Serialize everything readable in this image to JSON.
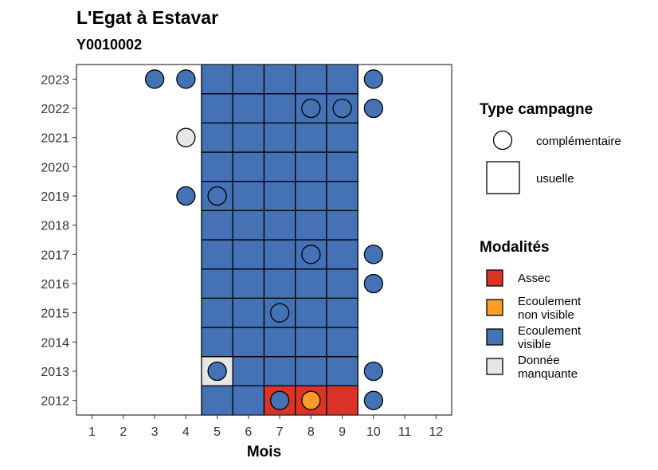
{
  "chart_data": {
    "type": "heatmap",
    "title": "L'Egat à Estavar",
    "subtitle": "Y0010002",
    "xlabel": "Mois",
    "ylabel": "",
    "x_ticks": [
      1,
      2,
      3,
      4,
      5,
      6,
      7,
      8,
      9,
      10,
      11,
      12
    ],
    "y_ticks": [
      2012,
      2013,
      2014,
      2015,
      2016,
      2017,
      2018,
      2019,
      2020,
      2021,
      2022,
      2023
    ],
    "xlim": [
      0.5,
      12.5
    ],
    "ylim": [
      2011.5,
      2023.5
    ],
    "grid": false,
    "legend_campaign": {
      "title": "Type campagne",
      "items": [
        {
          "key": "complementaire",
          "label": "complémentaire",
          "shape": "circle"
        },
        {
          "key": "usuelle",
          "label": "usuelle",
          "shape": "square"
        }
      ]
    },
    "legend_modalites": {
      "title": "Modalités",
      "items": [
        {
          "key": "assec",
          "label_lines": [
            "Assec"
          ],
          "color": "#db3328"
        },
        {
          "key": "nonvisible",
          "label_lines": [
            "Ecoulement",
            "non visible"
          ],
          "color": "#fd9d27"
        },
        {
          "key": "visible",
          "label_lines": [
            "Ecoulement",
            "visible"
          ],
          "color": "#4472b5"
        },
        {
          "key": "manquante",
          "label_lines": [
            "Donnée",
            "manquante"
          ],
          "color": "#e6e6e6"
        }
      ]
    },
    "usuelle": [
      {
        "year": 2012,
        "month": 5,
        "mod": "visible"
      },
      {
        "year": 2012,
        "month": 6,
        "mod": "visible"
      },
      {
        "year": 2012,
        "month": 7,
        "mod": "assec"
      },
      {
        "year": 2012,
        "month": 8,
        "mod": "assec"
      },
      {
        "year": 2012,
        "month": 9,
        "mod": "assec"
      },
      {
        "year": 2013,
        "month": 5,
        "mod": "manquante"
      },
      {
        "year": 2013,
        "month": 6,
        "mod": "visible"
      },
      {
        "year": 2013,
        "month": 7,
        "mod": "visible"
      },
      {
        "year": 2013,
        "month": 8,
        "mod": "visible"
      },
      {
        "year": 2013,
        "month": 9,
        "mod": "visible"
      },
      {
        "year": 2014,
        "month": 5,
        "mod": "visible"
      },
      {
        "year": 2014,
        "month": 6,
        "mod": "visible"
      },
      {
        "year": 2014,
        "month": 7,
        "mod": "visible"
      },
      {
        "year": 2014,
        "month": 8,
        "mod": "visible"
      },
      {
        "year": 2014,
        "month": 9,
        "mod": "visible"
      },
      {
        "year": 2015,
        "month": 5,
        "mod": "visible"
      },
      {
        "year": 2015,
        "month": 6,
        "mod": "visible"
      },
      {
        "year": 2015,
        "month": 7,
        "mod": "visible"
      },
      {
        "year": 2015,
        "month": 8,
        "mod": "visible"
      },
      {
        "year": 2015,
        "month": 9,
        "mod": "visible"
      },
      {
        "year": 2016,
        "month": 5,
        "mod": "visible"
      },
      {
        "year": 2016,
        "month": 6,
        "mod": "visible"
      },
      {
        "year": 2016,
        "month": 7,
        "mod": "visible"
      },
      {
        "year": 2016,
        "month": 8,
        "mod": "visible"
      },
      {
        "year": 2016,
        "month": 9,
        "mod": "visible"
      },
      {
        "year": 2017,
        "month": 5,
        "mod": "visible"
      },
      {
        "year": 2017,
        "month": 6,
        "mod": "visible"
      },
      {
        "year": 2017,
        "month": 7,
        "mod": "visible"
      },
      {
        "year": 2017,
        "month": 8,
        "mod": "visible"
      },
      {
        "year": 2017,
        "month": 9,
        "mod": "visible"
      },
      {
        "year": 2018,
        "month": 5,
        "mod": "visible"
      },
      {
        "year": 2018,
        "month": 6,
        "mod": "visible"
      },
      {
        "year": 2018,
        "month": 7,
        "mod": "visible"
      },
      {
        "year": 2018,
        "month": 8,
        "mod": "visible"
      },
      {
        "year": 2018,
        "month": 9,
        "mod": "visible"
      },
      {
        "year": 2019,
        "month": 5,
        "mod": "visible"
      },
      {
        "year": 2019,
        "month": 6,
        "mod": "visible"
      },
      {
        "year": 2019,
        "month": 7,
        "mod": "visible"
      },
      {
        "year": 2019,
        "month": 8,
        "mod": "visible"
      },
      {
        "year": 2019,
        "month": 9,
        "mod": "visible"
      },
      {
        "year": 2020,
        "month": 5,
        "mod": "visible"
      },
      {
        "year": 2020,
        "month": 6,
        "mod": "visible"
      },
      {
        "year": 2020,
        "month": 7,
        "mod": "visible"
      },
      {
        "year": 2020,
        "month": 8,
        "mod": "visible"
      },
      {
        "year": 2020,
        "month": 9,
        "mod": "visible"
      },
      {
        "year": 2021,
        "month": 5,
        "mod": "visible"
      },
      {
        "year": 2021,
        "month": 6,
        "mod": "visible"
      },
      {
        "year": 2021,
        "month": 7,
        "mod": "visible"
      },
      {
        "year": 2021,
        "month": 8,
        "mod": "visible"
      },
      {
        "year": 2021,
        "month": 9,
        "mod": "visible"
      },
      {
        "year": 2022,
        "month": 5,
        "mod": "visible"
      },
      {
        "year": 2022,
        "month": 6,
        "mod": "visible"
      },
      {
        "year": 2022,
        "month": 7,
        "mod": "visible"
      },
      {
        "year": 2022,
        "month": 8,
        "mod": "visible"
      },
      {
        "year": 2022,
        "month": 9,
        "mod": "visible"
      },
      {
        "year": 2023,
        "month": 5,
        "mod": "visible"
      },
      {
        "year": 2023,
        "month": 6,
        "mod": "visible"
      },
      {
        "year": 2023,
        "month": 7,
        "mod": "visible"
      },
      {
        "year": 2023,
        "month": 8,
        "mod": "visible"
      },
      {
        "year": 2023,
        "month": 9,
        "mod": "visible"
      }
    ],
    "complementaire": [
      {
        "year": 2023,
        "month": 3,
        "mod": "visible"
      },
      {
        "year": 2023,
        "month": 4,
        "mod": "visible"
      },
      {
        "year": 2023,
        "month": 10,
        "mod": "visible"
      },
      {
        "year": 2022,
        "month": 8,
        "mod": "visible"
      },
      {
        "year": 2022,
        "month": 9,
        "mod": "visible"
      },
      {
        "year": 2022,
        "month": 10,
        "mod": "visible"
      },
      {
        "year": 2021,
        "month": 4,
        "mod": "manquante"
      },
      {
        "year": 2019,
        "month": 4,
        "mod": "visible"
      },
      {
        "year": 2019,
        "month": 5,
        "mod": "visible"
      },
      {
        "year": 2017,
        "month": 8,
        "mod": "visible"
      },
      {
        "year": 2017,
        "month": 10,
        "mod": "visible"
      },
      {
        "year": 2016,
        "month": 10,
        "mod": "visible"
      },
      {
        "year": 2015,
        "month": 7,
        "mod": "visible"
      },
      {
        "year": 2013,
        "month": 5,
        "mod": "visible"
      },
      {
        "year": 2013,
        "month": 10,
        "mod": "visible"
      },
      {
        "year": 2012,
        "month": 7,
        "mod": "visible"
      },
      {
        "year": 2012,
        "month": 8,
        "mod": "nonvisible"
      },
      {
        "year": 2012,
        "month": 10,
        "mod": "visible"
      }
    ]
  }
}
